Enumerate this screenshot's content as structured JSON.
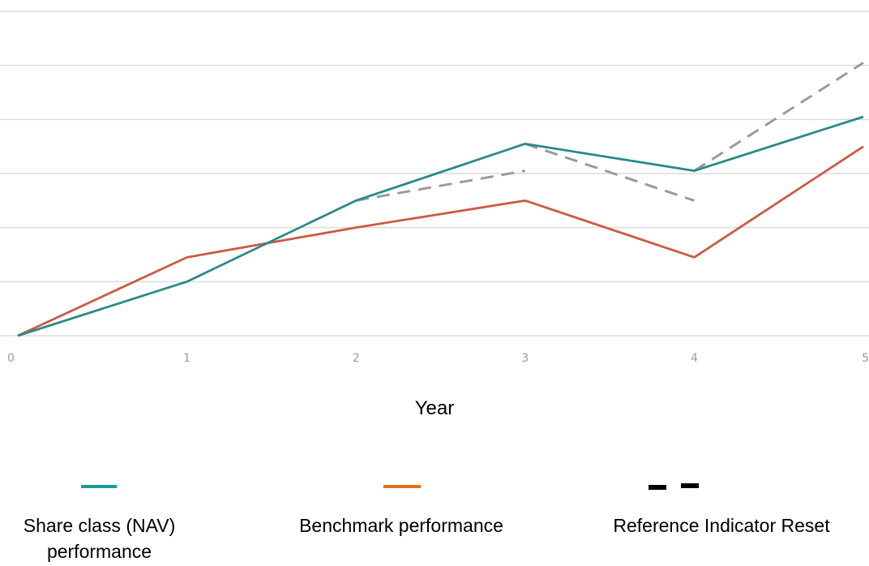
{
  "chart_data": {
    "type": "line",
    "title": "",
    "xlabel": "Year",
    "ylabel": "",
    "x": [
      0,
      1,
      2,
      3,
      4,
      5
    ],
    "x_tick_labels": [
      "0",
      "1",
      "2",
      "3",
      "4",
      "5"
    ],
    "ylim": [
      0,
      6
    ],
    "grid": "horizontal",
    "series": [
      {
        "name": "Share class (NAV) performance",
        "color": "#2a8a86",
        "style": "solid",
        "points": [
          [
            0,
            0
          ],
          [
            1,
            1
          ],
          [
            2,
            2.5
          ],
          [
            3,
            3.55
          ],
          [
            4,
            3.05
          ],
          [
            5,
            4.05
          ]
        ]
      },
      {
        "name": "Benchmark performance",
        "color": "#cd5a44",
        "style": "solid",
        "points": [
          [
            0,
            0
          ],
          [
            1,
            1.45
          ],
          [
            2,
            2.0
          ],
          [
            3,
            2.5
          ],
          [
            4,
            1.45
          ],
          [
            5,
            3.5
          ]
        ]
      },
      {
        "name": "Reference Indicator Reset",
        "color": "#9a9a9a",
        "style": "dashed",
        "segments": [
          [
            [
              2,
              2.5
            ],
            [
              3,
              3.05
            ]
          ],
          [
            [
              3,
              3.55
            ],
            [
              4,
              2.5
            ]
          ],
          [
            [
              4,
              3.05
            ],
            [
              5,
              5.05
            ]
          ]
        ]
      }
    ],
    "legend": {
      "placement": "bottom",
      "items": [
        {
          "label": "Share class (NAV) performance",
          "line1": "Share class (NAV)",
          "line2": "performance",
          "color": "#1a9a9a",
          "style": "solid"
        },
        {
          "label": "Benchmark performance",
          "line1": "Benchmark performance",
          "line2": "",
          "color": "#e07020",
          "style": "solid"
        },
        {
          "label": "Reference Indicator Reset",
          "line1": "Reference Indicator Reset",
          "line2": "",
          "color": "#000000",
          "style": "dashed"
        }
      ]
    }
  }
}
